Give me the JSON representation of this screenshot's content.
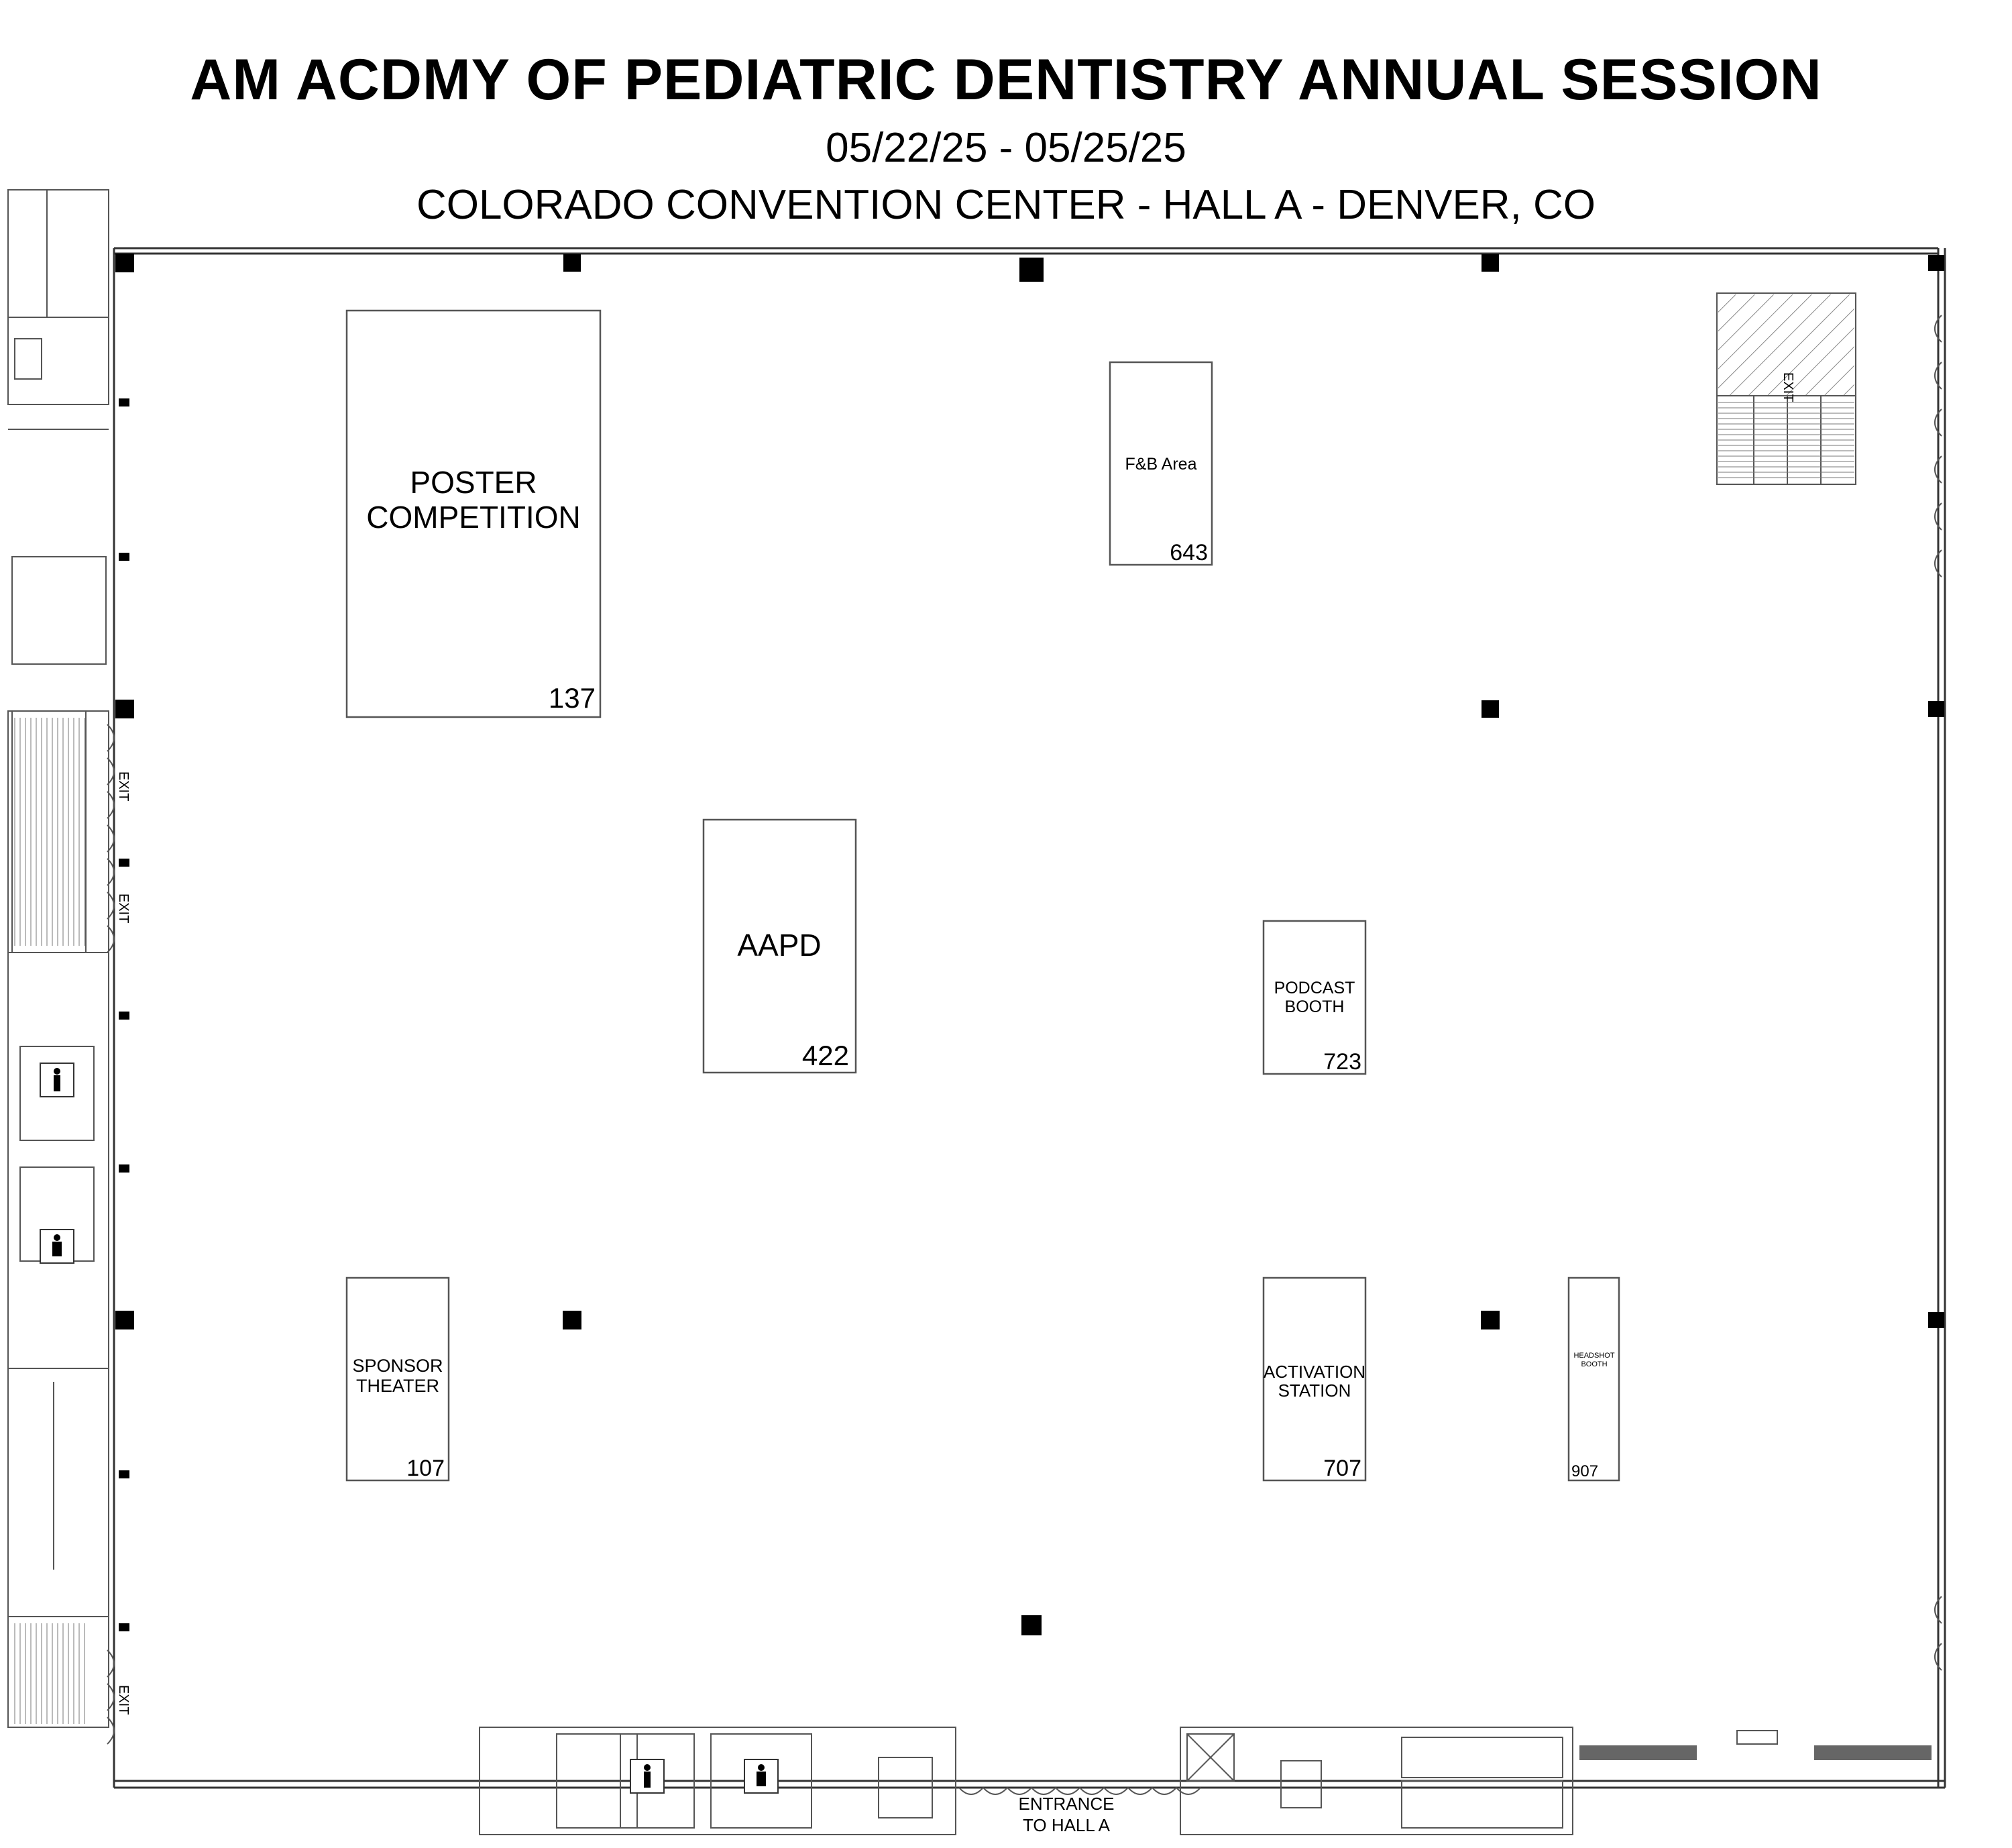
{
  "header": {
    "title": "AM ACDMY OF PEDIATRIC DENTISTRY ANNUAL SESSION",
    "dates": "05/22/25 - 05/25/25",
    "venue": "COLORADO CONVENTION CENTER - HALL A - DENVER, CO"
  },
  "booths": {
    "poster": {
      "label_1": "POSTER",
      "label_2": "COMPETITION",
      "number": "137"
    },
    "fb": {
      "label": "F&B Area",
      "number": "643"
    },
    "aapd": {
      "label": "AAPD",
      "number": "422"
    },
    "podcast": {
      "label_1": "PODCAST",
      "label_2": "BOOTH",
      "number": "723"
    },
    "sponsor": {
      "label_1": "SPONSOR",
      "label_2": "THEATER",
      "number": "107"
    },
    "activation": {
      "label_1": "ACTIVATION",
      "label_2": "STATION",
      "number": "707"
    },
    "headshot": {
      "label_1": "HEADSHOT",
      "label_2": "BOOTH",
      "number": "907"
    }
  },
  "exits": {
    "label": "EXIT"
  },
  "entrance": {
    "line_1": "ENTRANCE",
    "line_2": "TO HALL A"
  }
}
